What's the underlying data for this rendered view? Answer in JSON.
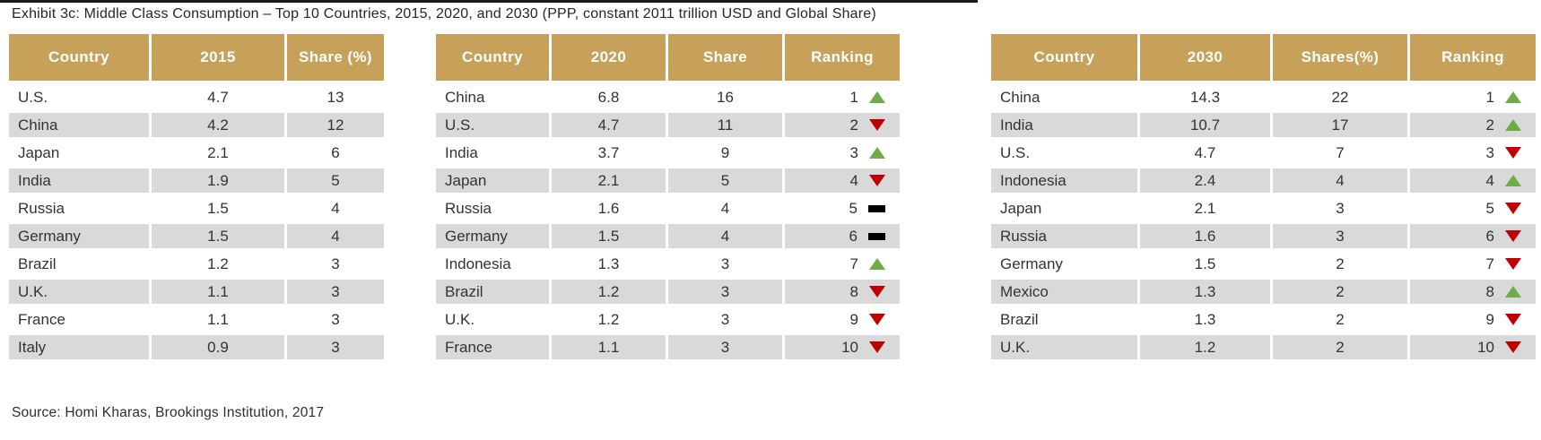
{
  "page": {
    "title": "Exhibit 3c: Middle Class Consumption – Top 10 Countries, 2015, 2020, and 2030 (PPP, constant 2011 trillion USD and Global Share)",
    "source": "Source: Homi Kharas, Brookings Institution, 2017"
  },
  "colors": {
    "header_bg": "#C7A15A",
    "row_alt_bg": "#D9D9D9",
    "up_arrow": "#6FAC46",
    "down_arrow": "#C00000",
    "unchanged_bar": "#000000"
  },
  "chart_data": [
    {
      "type": "table",
      "name": "middle-class-consumption-2015",
      "columns": [
        "Country",
        "2015",
        "Share (%)"
      ],
      "rows": [
        {
          "country": "U.S.",
          "value": "4.7",
          "share": "13"
        },
        {
          "country": "China",
          "value": "4.2",
          "share": "12"
        },
        {
          "country": "Japan",
          "value": "2.1",
          "share": "6"
        },
        {
          "country": "India",
          "value": "1.9",
          "share": "5"
        },
        {
          "country": "Russia",
          "value": "1.5",
          "share": "4"
        },
        {
          "country": "Germany",
          "value": "1.5",
          "share": "4"
        },
        {
          "country": "Brazil",
          "value": "1.2",
          "share": "3"
        },
        {
          "country": "U.K.",
          "value": "1.1",
          "share": "3"
        },
        {
          "country": "France",
          "value": "1.1",
          "share": "3"
        },
        {
          "country": "Italy",
          "value": "0.9",
          "share": "3"
        }
      ]
    },
    {
      "type": "table",
      "name": "middle-class-consumption-2020",
      "columns": [
        "Country",
        "2020",
        "Share",
        "Ranking"
      ],
      "rows": [
        {
          "country": "China",
          "value": "6.8",
          "share": "16",
          "rank": "1",
          "trend": "up"
        },
        {
          "country": "U.S.",
          "value": "4.7",
          "share": "11",
          "rank": "2",
          "trend": "down"
        },
        {
          "country": "India",
          "value": "3.7",
          "share": "9",
          "rank": "3",
          "trend": "up"
        },
        {
          "country": "Japan",
          "value": "2.1",
          "share": "5",
          "rank": "4",
          "trend": "down"
        },
        {
          "country": "Russia",
          "value": "1.6",
          "share": "4",
          "rank": "5",
          "trend": "same"
        },
        {
          "country": "Germany",
          "value": "1.5",
          "share": "4",
          "rank": "6",
          "trend": "same"
        },
        {
          "country": "Indonesia",
          "value": "1.3",
          "share": "3",
          "rank": "7",
          "trend": "up"
        },
        {
          "country": "Brazil",
          "value": "1.2",
          "share": "3",
          "rank": "8",
          "trend": "down"
        },
        {
          "country": "U.K.",
          "value": "1.2",
          "share": "3",
          "rank": "9",
          "trend": "down"
        },
        {
          "country": "France",
          "value": "1.1",
          "share": "3",
          "rank": "10",
          "trend": "down"
        }
      ]
    },
    {
      "type": "table",
      "name": "middle-class-consumption-2030",
      "columns": [
        "Country",
        "2030",
        "Shares(%)",
        "Ranking"
      ],
      "rows": [
        {
          "country": "China",
          "value": "14.3",
          "share": "22",
          "rank": "1",
          "trend": "up"
        },
        {
          "country": "India",
          "value": "10.7",
          "share": "17",
          "rank": "2",
          "trend": "up"
        },
        {
          "country": "U.S.",
          "value": "4.7",
          "share": "7",
          "rank": "3",
          "trend": "down"
        },
        {
          "country": "Indonesia",
          "value": "2.4",
          "share": "4",
          "rank": "4",
          "trend": "up"
        },
        {
          "country": "Japan",
          "value": "2.1",
          "share": "3",
          "rank": "5",
          "trend": "down"
        },
        {
          "country": "Russia",
          "value": "1.6",
          "share": "3",
          "rank": "6",
          "trend": "down"
        },
        {
          "country": "Germany",
          "value": "1.5",
          "share": "2",
          "rank": "7",
          "trend": "down"
        },
        {
          "country": "Mexico",
          "value": "1.3",
          "share": "2",
          "rank": "8",
          "trend": "up"
        },
        {
          "country": "Brazil",
          "value": "1.3",
          "share": "2",
          "rank": "9",
          "trend": "down"
        },
        {
          "country": "U.K.",
          "value": "1.2",
          "share": "2",
          "rank": "10",
          "trend": "down"
        }
      ]
    }
  ]
}
